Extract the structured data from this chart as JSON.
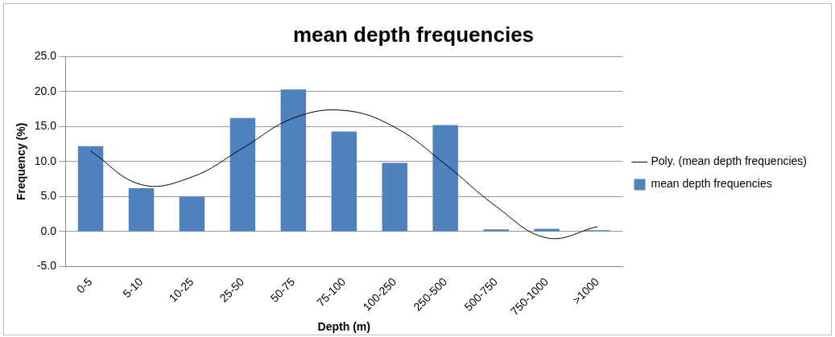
{
  "chart_data": {
    "type": "bar",
    "title": "mean depth frequencies",
    "xlabel": "Depth (m)",
    "ylabel": "Frequency (%)",
    "categories": [
      "0-5",
      "5-10",
      "10-25",
      "25-50",
      "50-75",
      "75-100",
      "100-250",
      "250-500",
      "500-750",
      "750-1000",
      ">1000"
    ],
    "series": [
      {
        "name": "mean depth frequencies",
        "color": "#4f81bd",
        "values": [
          12.2,
          6.2,
          5.0,
          16.2,
          20.3,
          14.3,
          9.8,
          15.2,
          0.3,
          0.4,
          0.2
        ]
      },
      {
        "name": "Poly. (mean depth frequencies)",
        "type": "line",
        "color": "#000000",
        "values": [
          11.5,
          6.7,
          7.8,
          11.9,
          16.2,
          17.3,
          14.9,
          9.6,
          3.6,
          -0.9,
          0.7
        ]
      }
    ],
    "ylim": [
      -5,
      25
    ],
    "yticks": [
      {
        "value": -5,
        "label": "-5.0"
      },
      {
        "value": 0,
        "label": "0.0"
      },
      {
        "value": 5,
        "label": "5.0"
      },
      {
        "value": 10,
        "label": "10.0"
      },
      {
        "value": 15,
        "label": "15.0"
      },
      {
        "value": 20,
        "label": "20.0"
      },
      {
        "value": 25,
        "label": "25.0"
      }
    ],
    "grid": "y",
    "legend": "right",
    "marker": "none"
  }
}
